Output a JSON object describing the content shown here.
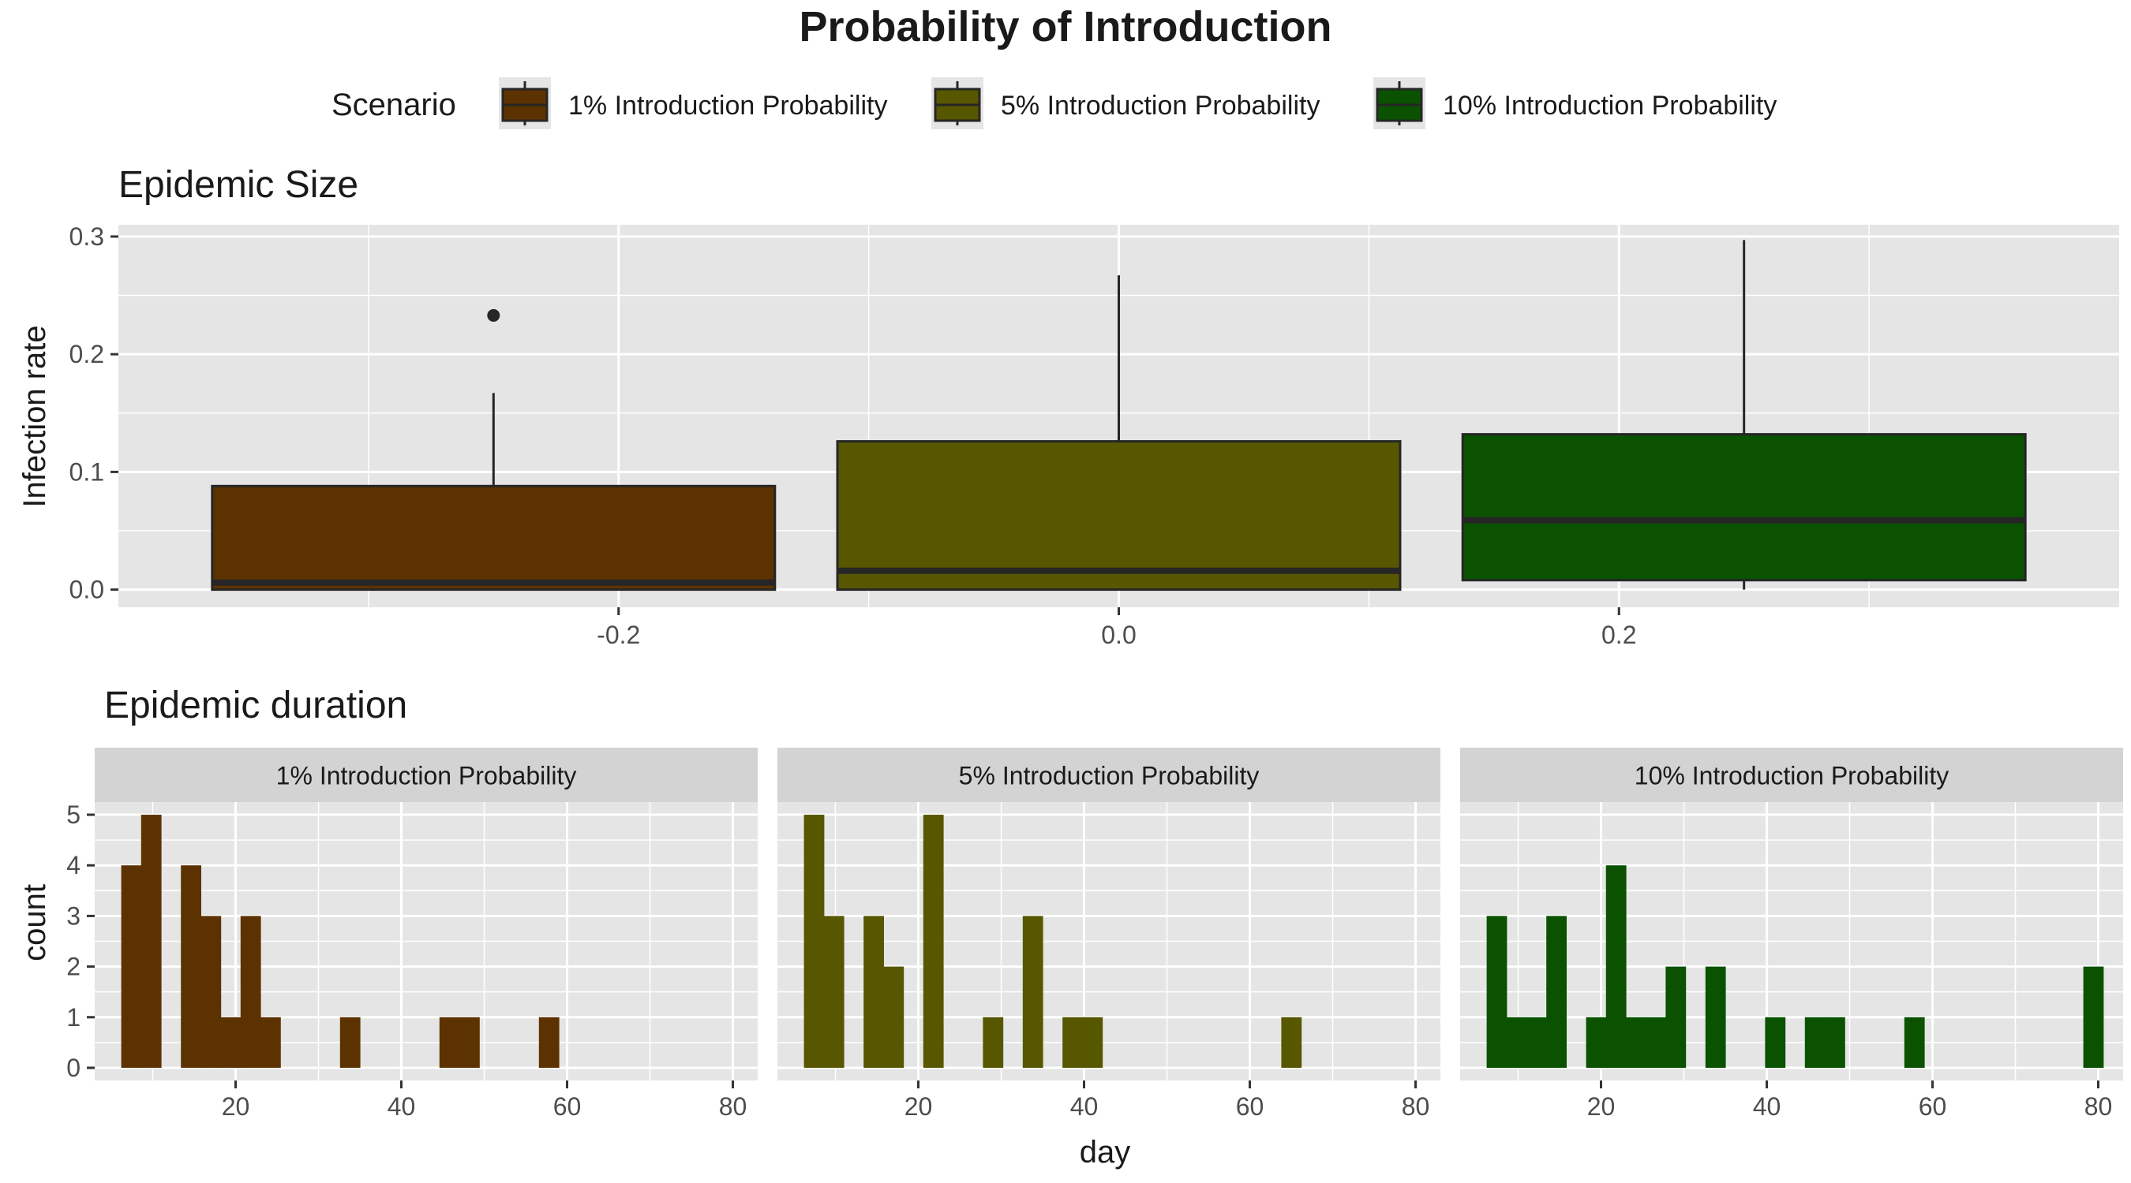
{
  "title": "Probability of Introduction",
  "legend": {
    "title": "Scenario",
    "entries": [
      {
        "label": "1% Introduction Probability",
        "color": "#5C3300"
      },
      {
        "label": "5% Introduction Probability",
        "color": "#575700"
      },
      {
        "label": "10% Introduction Probability",
        "color": "#0A5200"
      }
    ]
  },
  "colors": {
    "panel_bg": "#E5E5E5",
    "grid": "#FFFFFF",
    "strip_bg": "#D3D3D3",
    "text": "#1A1A1A",
    "axis_text": "#4D4D4D",
    "outline": "#262626"
  },
  "chart_data": [
    {
      "type": "box",
      "title": "Epidemic Size",
      "xlabel": "",
      "ylabel": "Infection rate",
      "xlim": [
        -0.4,
        0.4
      ],
      "ylim": [
        -0.015,
        0.31
      ],
      "x_ticks": [
        -0.2,
        0.0,
        0.2
      ],
      "x_tick_labels": [
        "-0.2",
        "0.0",
        "0.2"
      ],
      "y_ticks": [
        0.0,
        0.1,
        0.2,
        0.3
      ],
      "y_tick_labels": [
        "0.0",
        "0.1",
        "0.2",
        "0.3"
      ],
      "grid": true,
      "boxes": [
        {
          "series": "1% Introduction Probability",
          "x_center": -0.25,
          "width": 0.225,
          "min": 0.0,
          "q1": 0.0,
          "median": 0.006,
          "q3": 0.088,
          "max": 0.167,
          "outliers": [
            0.233
          ]
        },
        {
          "series": "5% Introduction Probability",
          "x_center": 0.0,
          "width": 0.225,
          "min": 0.0,
          "q1": 0.0,
          "median": 0.016,
          "q3": 0.126,
          "max": 0.267,
          "outliers": []
        },
        {
          "series": "10% Introduction Probability",
          "x_center": 0.25,
          "width": 0.225,
          "min": 0.0,
          "q1": 0.008,
          "median": 0.059,
          "q3": 0.132,
          "max": 0.297,
          "outliers": []
        }
      ]
    },
    {
      "type": "bar",
      "subtype": "histogram",
      "title": "Epidemic duration",
      "xlabel": "day",
      "ylabel": "count",
      "xlim": [
        3,
        83
      ],
      "ylim": [
        -0.25,
        5.25
      ],
      "x_ticks": [
        20,
        40,
        60,
        80
      ],
      "x_tick_labels": [
        "20",
        "40",
        "60",
        "80"
      ],
      "y_ticks": [
        0,
        1,
        2,
        3,
        4,
        5
      ],
      "y_tick_labels": [
        "0",
        "1",
        "2",
        "3",
        "4",
        "5"
      ],
      "bin_width": 2.4,
      "bin_start": 6.2,
      "grid": true,
      "facets": [
        {
          "label": "1% Introduction Probability",
          "series": "1% Introduction Probability",
          "counts": [
            4,
            5,
            0,
            4,
            3,
            1,
            3,
            1,
            0,
            0,
            0,
            1,
            0,
            0,
            0,
            0,
            1,
            1,
            0,
            0,
            0,
            1,
            0,
            0,
            0,
            0,
            0,
            0,
            0,
            0,
            0
          ]
        },
        {
          "label": "5% Introduction Probability",
          "series": "5% Introduction Probability",
          "counts": [
            5,
            3,
            0,
            3,
            2,
            0,
            5,
            0,
            0,
            1,
            0,
            3,
            0,
            1,
            1,
            0,
            0,
            0,
            0,
            0,
            0,
            0,
            0,
            0,
            1,
            0,
            0,
            0,
            0,
            0,
            0
          ]
        },
        {
          "label": "10% Introduction Probability",
          "series": "10% Introduction Probability",
          "counts": [
            3,
            1,
            1,
            3,
            0,
            1,
            4,
            1,
            1,
            2,
            0,
            2,
            0,
            0,
            1,
            0,
            1,
            1,
            0,
            0,
            0,
            1,
            0,
            0,
            0,
            0,
            0,
            0,
            0,
            0,
            2
          ]
        }
      ]
    }
  ]
}
